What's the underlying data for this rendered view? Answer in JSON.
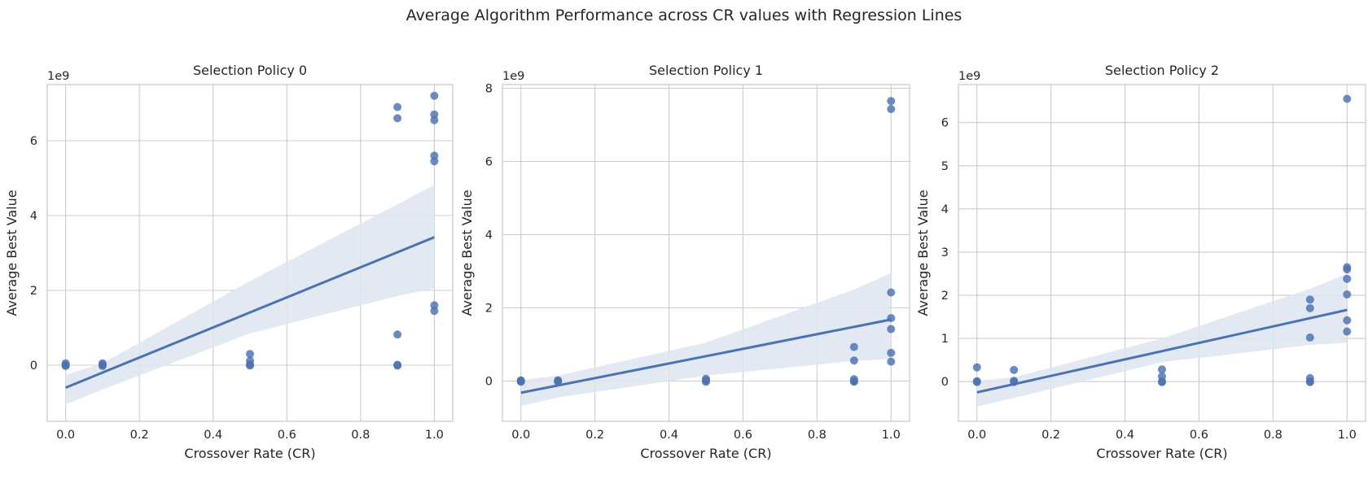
{
  "figure_title": "Average Algorithm Performance across CR values with Regression Lines",
  "colors": {
    "points": "#4c72b0",
    "line": "#4c72b0",
    "band": "#dde5f1",
    "grid": "#cccccc"
  },
  "chart_data": [
    {
      "type": "scatter",
      "title": "Selection Policy 0",
      "xlabel": "Crossover Rate (CR)",
      "ylabel": "Average Best Value",
      "y_multiplier": "1e9",
      "xlim": [
        -0.05,
        1.05
      ],
      "ylim": [
        -1.5,
        7.5
      ],
      "xticks": [
        "0.0",
        "0.2",
        "0.4",
        "0.6",
        "0.8",
        "1.0"
      ],
      "yticks": [
        "0",
        "2",
        "4",
        "6"
      ],
      "xtick_values": [
        0,
        0.2,
        0.4,
        0.6,
        0.8,
        1.0
      ],
      "ytick_values": [
        0,
        2,
        4,
        6
      ],
      "points": [
        [
          0,
          0.05
        ],
        [
          0,
          0.0
        ],
        [
          0,
          -0.02
        ],
        [
          0.1,
          0.05
        ],
        [
          0.1,
          0.01
        ],
        [
          0.1,
          -0.02
        ],
        [
          0.5,
          0.3
        ],
        [
          0.5,
          0.12
        ],
        [
          0.5,
          0.02
        ],
        [
          0.5,
          -0.01
        ],
        [
          0.9,
          6.9
        ],
        [
          0.9,
          6.6
        ],
        [
          0.9,
          0.82
        ],
        [
          0.9,
          0.01
        ],
        [
          0.9,
          -0.01
        ],
        [
          1.0,
          7.2
        ],
        [
          1.0,
          6.7
        ],
        [
          1.0,
          6.55
        ],
        [
          1.0,
          5.6
        ],
        [
          1.0,
          5.45
        ],
        [
          1.0,
          1.6
        ],
        [
          1.0,
          1.45
        ]
      ],
      "regression": {
        "x": [
          0,
          1.0
        ],
        "y": [
          -0.6,
          3.42
        ]
      },
      "ci_band": {
        "x": [
          0,
          0.1,
          0.5,
          0.9,
          1.0
        ],
        "lower": [
          -1.05,
          -0.65,
          0.85,
          1.85,
          2.05
        ],
        "upper": [
          -0.25,
          0.05,
          2.25,
          4.3,
          4.82
        ]
      }
    },
    {
      "type": "scatter",
      "title": "Selection Policy 1",
      "xlabel": "Crossover Rate (CR)",
      "ylabel": "Average Best Value",
      "y_multiplier": "1e9",
      "xlim": [
        -0.05,
        1.05
      ],
      "ylim": [
        -1.1,
        8.1
      ],
      "xticks": [
        "0.0",
        "0.2",
        "0.4",
        "0.6",
        "0.8",
        "1.0"
      ],
      "yticks": [
        "0",
        "2",
        "4",
        "6",
        "8"
      ],
      "xtick_values": [
        0,
        0.2,
        0.4,
        0.6,
        0.8,
        1.0
      ],
      "ytick_values": [
        0,
        2,
        4,
        6,
        8
      ],
      "points": [
        [
          0,
          0.02
        ],
        [
          0,
          0.0
        ],
        [
          0,
          -0.02
        ],
        [
          0.1,
          0.02
        ],
        [
          0.1,
          0.0
        ],
        [
          0.1,
          -0.02
        ],
        [
          0.5,
          0.06
        ],
        [
          0.5,
          0.01
        ],
        [
          0.5,
          -0.02
        ],
        [
          0.9,
          0.93
        ],
        [
          0.9,
          0.56
        ],
        [
          0.9,
          0.05
        ],
        [
          0.9,
          0.0
        ],
        [
          0.9,
          -0.02
        ],
        [
          1.0,
          7.65
        ],
        [
          1.0,
          7.43
        ],
        [
          1.0,
          2.42
        ],
        [
          1.0,
          1.72
        ],
        [
          1.0,
          1.42
        ],
        [
          1.0,
          0.77
        ],
        [
          1.0,
          0.53
        ]
      ],
      "regression": {
        "x": [
          0,
          1.0
        ],
        "y": [
          -0.32,
          1.68
        ]
      },
      "ci_band": {
        "x": [
          0,
          0.1,
          0.5,
          0.9,
          1.0
        ],
        "lower": [
          -0.68,
          -0.45,
          0.15,
          0.55,
          0.6
        ],
        "upper": [
          0.02,
          0.15,
          1.05,
          2.5,
          2.95
        ]
      }
    },
    {
      "type": "scatter",
      "title": "Selection Policy 2",
      "xlabel": "Crossover Rate (CR)",
      "ylabel": "Average Best Value",
      "y_multiplier": "1e9",
      "xlim": [
        -0.05,
        1.05
      ],
      "ylim": [
        -0.92,
        6.88
      ],
      "xticks": [
        "0.0",
        "0.2",
        "0.4",
        "0.6",
        "0.8",
        "1.0"
      ],
      "yticks": [
        "0",
        "1",
        "2",
        "3",
        "4",
        "5",
        "6"
      ],
      "xtick_values": [
        0,
        0.2,
        0.4,
        0.6,
        0.8,
        1.0
      ],
      "ytick_values": [
        0,
        1,
        2,
        3,
        4,
        5,
        6
      ],
      "points": [
        [
          0,
          0.33
        ],
        [
          0,
          0.01
        ],
        [
          0,
          -0.01
        ],
        [
          0.1,
          0.27
        ],
        [
          0.1,
          0.02
        ],
        [
          0.1,
          -0.01
        ],
        [
          0.5,
          0.28
        ],
        [
          0.5,
          0.12
        ],
        [
          0.5,
          0.0
        ],
        [
          0.5,
          -0.01
        ],
        [
          0.9,
          1.9
        ],
        [
          0.9,
          1.7
        ],
        [
          0.9,
          1.02
        ],
        [
          0.9,
          0.08
        ],
        [
          0.9,
          0.0
        ],
        [
          0.9,
          -0.01
        ],
        [
          1.0,
          6.55
        ],
        [
          1.0,
          2.65
        ],
        [
          1.0,
          2.6
        ],
        [
          1.0,
          2.38
        ],
        [
          1.0,
          2.02
        ],
        [
          1.0,
          1.42
        ],
        [
          1.0,
          1.16
        ]
      ],
      "regression": {
        "x": [
          0,
          1.0
        ],
        "y": [
          -0.25,
          1.66
        ]
      },
      "ci_band": {
        "x": [
          0,
          0.1,
          0.5,
          0.9,
          1.0
        ],
        "lower": [
          -0.58,
          -0.38,
          0.45,
          0.85,
          0.9
        ],
        "upper": [
          0.02,
          0.1,
          1.0,
          2.15,
          2.5
        ]
      }
    }
  ]
}
